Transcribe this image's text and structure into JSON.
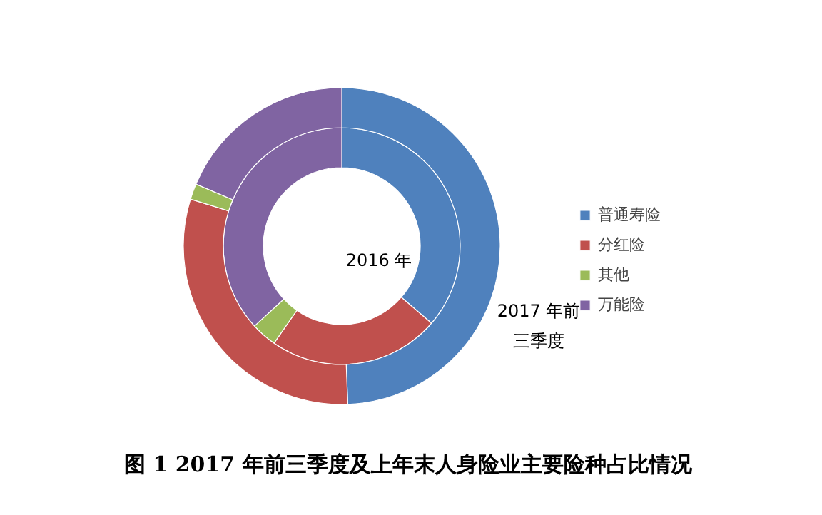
{
  "chart_data": {
    "type": "donut",
    "title": "图 1  2017 年前三季度及上年末人身险业主要险种占比情况",
    "categories": [
      "普通寿险",
      "分红险",
      "其他",
      "万能险"
    ],
    "colors": [
      "#4f81bd",
      "#c0504d",
      "#9bbb59",
      "#8064a2"
    ],
    "series": [
      {
        "name": "2016 年",
        "values": [
          36.3,
          23.4,
          3.5,
          36.8
        ]
      },
      {
        "name": "2017 年前三季度",
        "values": [
          49.4,
          30.4,
          1.6,
          18.6
        ]
      }
    ],
    "legend": "right"
  }
}
